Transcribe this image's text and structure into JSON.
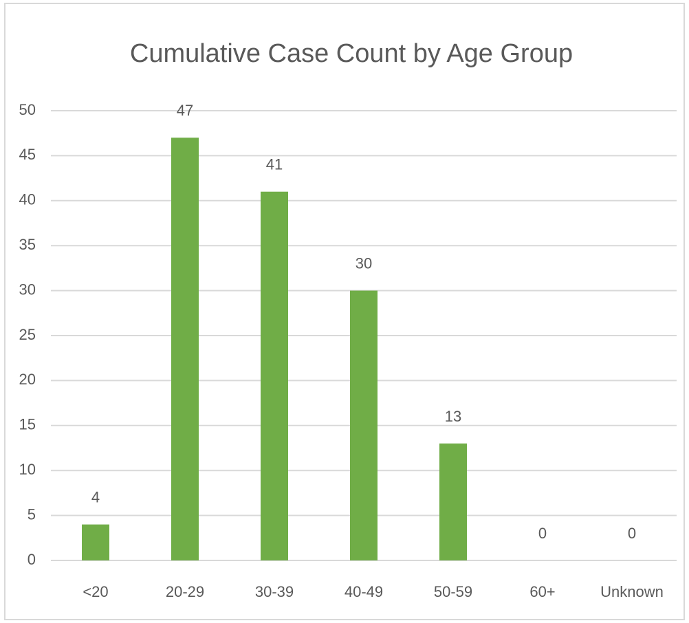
{
  "chart_data": {
    "type": "bar",
    "title": "Cumulative Case Count by Age Group",
    "categories": [
      "<20",
      "20-29",
      "30-39",
      "40-49",
      "50-59",
      "60+",
      "Unknown"
    ],
    "values": [
      4,
      47,
      41,
      30,
      13,
      0,
      0
    ],
    "color": "#70ad47",
    "ylim": [
      0,
      50
    ],
    "yticks": [
      0,
      5,
      10,
      15,
      20,
      25,
      30,
      35,
      40,
      45,
      50
    ],
    "grid": true
  }
}
